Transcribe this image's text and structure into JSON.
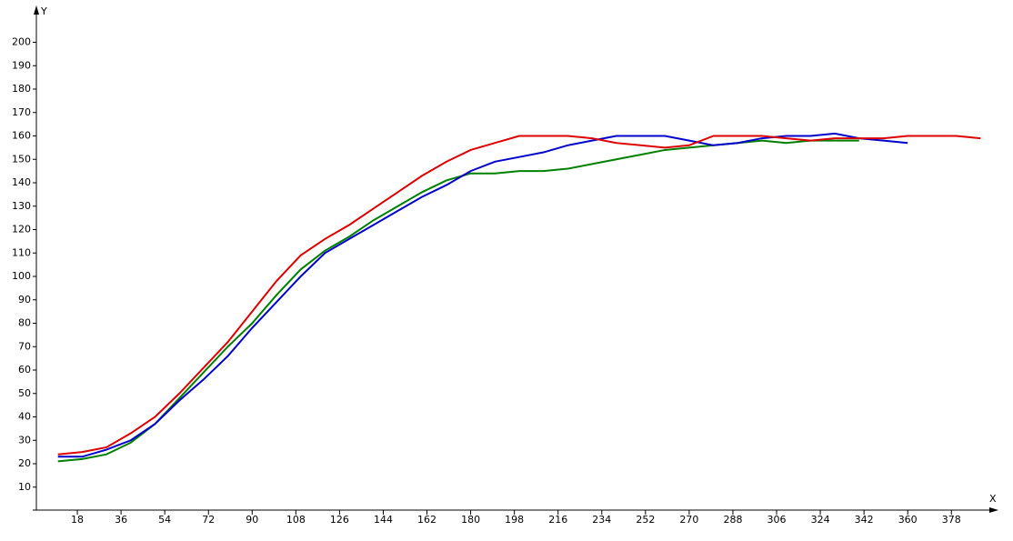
{
  "chart_data": {
    "type": "line",
    "x_label": "X",
    "y_label": "Y",
    "xlim": [
      0,
      396
    ],
    "ylim": [
      0,
      214
    ],
    "xticks": [
      18,
      36,
      54,
      72,
      90,
      108,
      126,
      144,
      162,
      180,
      198,
      216,
      234,
      252,
      270,
      288,
      306,
      324,
      342,
      360,
      378
    ],
    "yticks": [
      10,
      20,
      30,
      40,
      50,
      60,
      70,
      80,
      90,
      100,
      110,
      120,
      130,
      140,
      150,
      160,
      170,
      180,
      190,
      200
    ],
    "grid": false,
    "series": [
      {
        "color": "#008000",
        "x": [
          10,
          20,
          30,
          40,
          50,
          60,
          70,
          80,
          90,
          100,
          110,
          120,
          130,
          140,
          150,
          160,
          170,
          180,
          190,
          200,
          210,
          220,
          230,
          240,
          250,
          260,
          270,
          280,
          290,
          300,
          310,
          320,
          330,
          340
        ],
        "values": [
          21,
          22,
          24,
          29,
          37,
          48,
          59,
          70,
          80,
          92,
          103,
          111,
          117,
          124,
          130,
          136,
          141,
          144,
          144,
          145,
          145,
          146,
          148,
          150,
          152,
          154,
          155,
          156,
          157,
          158,
          157,
          158,
          158,
          158
        ]
      },
      {
        "color": "#0000cc",
        "x": [
          10,
          20,
          30,
          40,
          50,
          60,
          70,
          80,
          90,
          100,
          110,
          120,
          130,
          140,
          150,
          160,
          170,
          180,
          190,
          200,
          210,
          220,
          230,
          240,
          250,
          260,
          270,
          280,
          290,
          300,
          310,
          320,
          330,
          340,
          350,
          360
        ],
        "values": [
          23,
          23,
          26,
          30,
          37,
          47,
          56,
          66,
          78,
          89,
          100,
          110,
          116,
          122,
          128,
          134,
          139,
          145,
          149,
          151,
          153,
          156,
          158,
          160,
          160,
          160,
          158,
          156,
          157,
          159,
          160,
          160,
          161,
          159,
          158,
          157
        ]
      },
      {
        "color": "#dd0000",
        "x": [
          10,
          20,
          30,
          40,
          50,
          60,
          70,
          80,
          90,
          100,
          110,
          120,
          130,
          140,
          150,
          160,
          170,
          180,
          190,
          200,
          210,
          220,
          230,
          240,
          250,
          260,
          270,
          280,
          290,
          300,
          310,
          320,
          330,
          340,
          350,
          360,
          370,
          380,
          390
        ],
        "values": [
          24,
          25,
          27,
          33,
          40,
          50,
          61,
          72,
          85,
          98,
          109,
          116,
          122,
          129,
          136,
          143,
          149,
          154,
          157,
          160,
          160,
          160,
          159,
          157,
          156,
          155,
          156,
          160,
          160,
          160,
          159,
          158,
          159,
          159,
          159,
          160,
          160,
          160,
          159
        ]
      }
    ]
  }
}
